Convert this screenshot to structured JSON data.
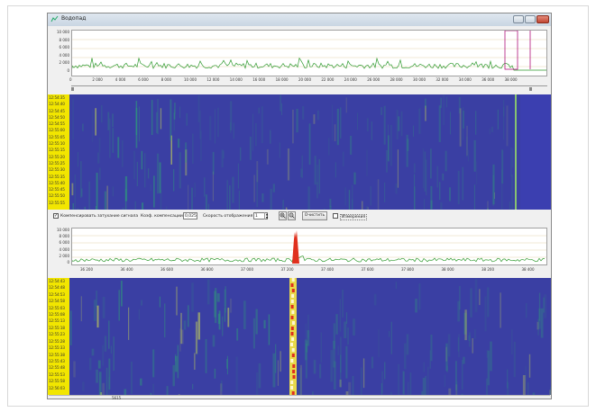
{
  "window": {
    "title": "Водопад"
  },
  "top_spectrum": {
    "y_labels": [
      "10 000",
      "8 000",
      "6 000",
      "4 000",
      "2 000",
      "0"
    ],
    "x_labels": [
      "0",
      "2 000",
      "4 000",
      "6 000",
      "8 000",
      "10 000",
      "12 000",
      "14 000",
      "16 000",
      "18 000",
      "20 000",
      "22 000",
      "24 000",
      "26 000",
      "28 000",
      "30 000",
      "32 000",
      "34 000",
      "36 000",
      "38 000"
    ],
    "trace_color": "#2f9a2f",
    "marker_color": "#b0127a"
  },
  "top_waterfall": {
    "timestamps": [
      "12:54:35",
      "12:54:40",
      "12:54:45",
      "12:54:50",
      "12:54:55",
      "12:55:00",
      "12:55:05",
      "12:55:10",
      "12:55:15",
      "12:55:20",
      "12:55:25",
      "12:55:30",
      "12:55:35",
      "12:55:40",
      "12:55:45",
      "12:55:50",
      "12:55:55"
    ]
  },
  "controls": {
    "compensate_label": "Компенсировать затухание сигнала",
    "coef_label": "Коэф. компенсации",
    "coef_value": "0,025",
    "speed_label": "Скорость отображения",
    "speed_value": "1",
    "zoom_in_icon": "zoom-in",
    "zoom_out_icon": "zoom-out",
    "clear_label": "Очистить",
    "measure_label": "Измерения"
  },
  "bottom_spectrum": {
    "y_labels": [
      "10 000",
      "8 000",
      "6 000",
      "4 000",
      "2 000",
      "0"
    ],
    "x_labels": [
      "36 200",
      "36 400",
      "36 600",
      "36 800",
      "37 000",
      "37 200",
      "37 400",
      "37 600",
      "37 800",
      "38 000",
      "38 200",
      "38 400"
    ],
    "peak_color": "#e0301e",
    "trace_color": "#2f9a2f"
  },
  "bottom_waterfall": {
    "timestamps": [
      "12:54:43",
      "12:54:48",
      "12:54:53",
      "12:54:58",
      "12:55:03",
      "12:55:08",
      "12:55:13",
      "12:55:18",
      "12:55:23",
      "12:55:28",
      "12:55:33",
      "12:55:38",
      "12:55:43",
      "12:55:48",
      "12:55:53",
      "12:55:58",
      "12:56:03"
    ]
  },
  "status_bar": {
    "value": "5615"
  }
}
